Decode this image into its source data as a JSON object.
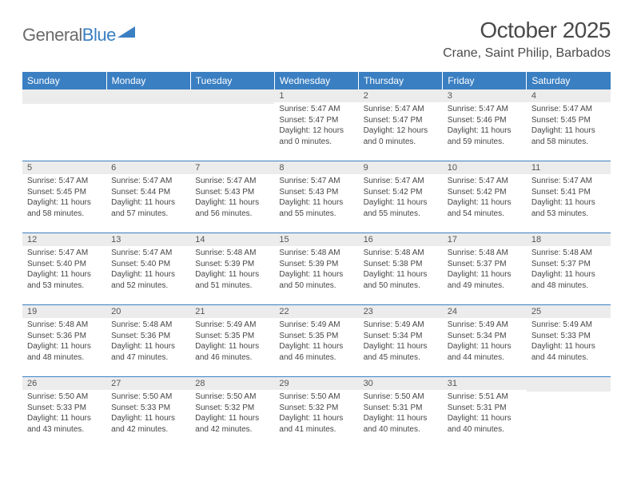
{
  "branding": {
    "logo_text_1": "General",
    "logo_text_2": "Blue",
    "logo_color_1": "#6b6b6b",
    "logo_color_2": "#3a7fc2"
  },
  "header": {
    "title": "October 2025",
    "location": "Crane, Saint Philip, Barbados"
  },
  "colors": {
    "header_bg": "#3a7fc2",
    "header_fg": "#ffffff",
    "daynum_bg": "#ececec",
    "row_border": "#3a7fc2",
    "text": "#464646",
    "title": "#4a4a4a"
  },
  "fonts": {
    "title_size_pt": 21,
    "location_size_pt": 12,
    "dayheader_size_pt": 9,
    "daynum_size_pt": 8,
    "body_size_pt": 7.5
  },
  "calendar": {
    "columns": [
      "Sunday",
      "Monday",
      "Tuesday",
      "Wednesday",
      "Thursday",
      "Friday",
      "Saturday"
    ],
    "first_day_index": 3,
    "days": [
      {
        "n": "1",
        "sunrise": "5:47 AM",
        "sunset": "5:47 PM",
        "daylight": "12 hours and 0 minutes."
      },
      {
        "n": "2",
        "sunrise": "5:47 AM",
        "sunset": "5:47 PM",
        "daylight": "12 hours and 0 minutes."
      },
      {
        "n": "3",
        "sunrise": "5:47 AM",
        "sunset": "5:46 PM",
        "daylight": "11 hours and 59 minutes."
      },
      {
        "n": "4",
        "sunrise": "5:47 AM",
        "sunset": "5:45 PM",
        "daylight": "11 hours and 58 minutes."
      },
      {
        "n": "5",
        "sunrise": "5:47 AM",
        "sunset": "5:45 PM",
        "daylight": "11 hours and 58 minutes."
      },
      {
        "n": "6",
        "sunrise": "5:47 AM",
        "sunset": "5:44 PM",
        "daylight": "11 hours and 57 minutes."
      },
      {
        "n": "7",
        "sunrise": "5:47 AM",
        "sunset": "5:43 PM",
        "daylight": "11 hours and 56 minutes."
      },
      {
        "n": "8",
        "sunrise": "5:47 AM",
        "sunset": "5:43 PM",
        "daylight": "11 hours and 55 minutes."
      },
      {
        "n": "9",
        "sunrise": "5:47 AM",
        "sunset": "5:42 PM",
        "daylight": "11 hours and 55 minutes."
      },
      {
        "n": "10",
        "sunrise": "5:47 AM",
        "sunset": "5:42 PM",
        "daylight": "11 hours and 54 minutes."
      },
      {
        "n": "11",
        "sunrise": "5:47 AM",
        "sunset": "5:41 PM",
        "daylight": "11 hours and 53 minutes."
      },
      {
        "n": "12",
        "sunrise": "5:47 AM",
        "sunset": "5:40 PM",
        "daylight": "11 hours and 53 minutes."
      },
      {
        "n": "13",
        "sunrise": "5:47 AM",
        "sunset": "5:40 PM",
        "daylight": "11 hours and 52 minutes."
      },
      {
        "n": "14",
        "sunrise": "5:48 AM",
        "sunset": "5:39 PM",
        "daylight": "11 hours and 51 minutes."
      },
      {
        "n": "15",
        "sunrise": "5:48 AM",
        "sunset": "5:39 PM",
        "daylight": "11 hours and 50 minutes."
      },
      {
        "n": "16",
        "sunrise": "5:48 AM",
        "sunset": "5:38 PM",
        "daylight": "11 hours and 50 minutes."
      },
      {
        "n": "17",
        "sunrise": "5:48 AM",
        "sunset": "5:37 PM",
        "daylight": "11 hours and 49 minutes."
      },
      {
        "n": "18",
        "sunrise": "5:48 AM",
        "sunset": "5:37 PM",
        "daylight": "11 hours and 48 minutes."
      },
      {
        "n": "19",
        "sunrise": "5:48 AM",
        "sunset": "5:36 PM",
        "daylight": "11 hours and 48 minutes."
      },
      {
        "n": "20",
        "sunrise": "5:48 AM",
        "sunset": "5:36 PM",
        "daylight": "11 hours and 47 minutes."
      },
      {
        "n": "21",
        "sunrise": "5:49 AM",
        "sunset": "5:35 PM",
        "daylight": "11 hours and 46 minutes."
      },
      {
        "n": "22",
        "sunrise": "5:49 AM",
        "sunset": "5:35 PM",
        "daylight": "11 hours and 46 minutes."
      },
      {
        "n": "23",
        "sunrise": "5:49 AM",
        "sunset": "5:34 PM",
        "daylight": "11 hours and 45 minutes."
      },
      {
        "n": "24",
        "sunrise": "5:49 AM",
        "sunset": "5:34 PM",
        "daylight": "11 hours and 44 minutes."
      },
      {
        "n": "25",
        "sunrise": "5:49 AM",
        "sunset": "5:33 PM",
        "daylight": "11 hours and 44 minutes."
      },
      {
        "n": "26",
        "sunrise": "5:50 AM",
        "sunset": "5:33 PM",
        "daylight": "11 hours and 43 minutes."
      },
      {
        "n": "27",
        "sunrise": "5:50 AM",
        "sunset": "5:33 PM",
        "daylight": "11 hours and 42 minutes."
      },
      {
        "n": "28",
        "sunrise": "5:50 AM",
        "sunset": "5:32 PM",
        "daylight": "11 hours and 42 minutes."
      },
      {
        "n": "29",
        "sunrise": "5:50 AM",
        "sunset": "5:32 PM",
        "daylight": "11 hours and 41 minutes."
      },
      {
        "n": "30",
        "sunrise": "5:50 AM",
        "sunset": "5:31 PM",
        "daylight": "11 hours and 40 minutes."
      },
      {
        "n": "31",
        "sunrise": "5:51 AM",
        "sunset": "5:31 PM",
        "daylight": "11 hours and 40 minutes."
      }
    ],
    "labels": {
      "sunrise": "Sunrise:",
      "sunset": "Sunset:",
      "daylight": "Daylight:"
    }
  }
}
